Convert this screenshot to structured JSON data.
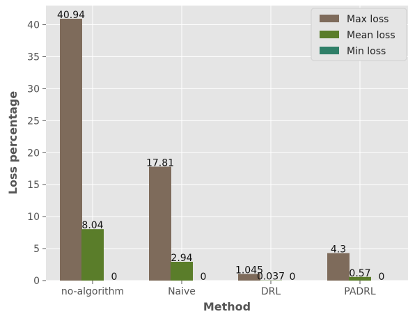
{
  "chart_data": {
    "type": "bar",
    "title": "",
    "xlabel": "Method",
    "ylabel": "Loss percentage",
    "categories": [
      "no-algorithm",
      "Naive",
      "DRL",
      "PADRL"
    ],
    "series": [
      {
        "name": "Max loss",
        "color": "#7e6b5b",
        "values": [
          40.94,
          17.81,
          1.045,
          4.3
        ],
        "labels": [
          "40.94",
          "17.81",
          "1.045",
          "4.3"
        ]
      },
      {
        "name": "Mean loss",
        "color": "#5a7d2a",
        "values": [
          8.04,
          2.94,
          0.037,
          0.57
        ],
        "labels": [
          "8.04",
          "2.94",
          "0.037",
          "0.57"
        ]
      },
      {
        "name": "Min loss",
        "color": "#2f7f68",
        "values": [
          0,
          0,
          0,
          0
        ],
        "labels": [
          "0",
          "0",
          "0",
          "0"
        ]
      }
    ],
    "ylim": [
      0,
      43
    ],
    "yticks": [
      0,
      5,
      10,
      15,
      20,
      25,
      30,
      35,
      40
    ],
    "grid": true,
    "legend": "top-right",
    "background": "#e5e5e5",
    "grid_color": "#ffffff"
  }
}
